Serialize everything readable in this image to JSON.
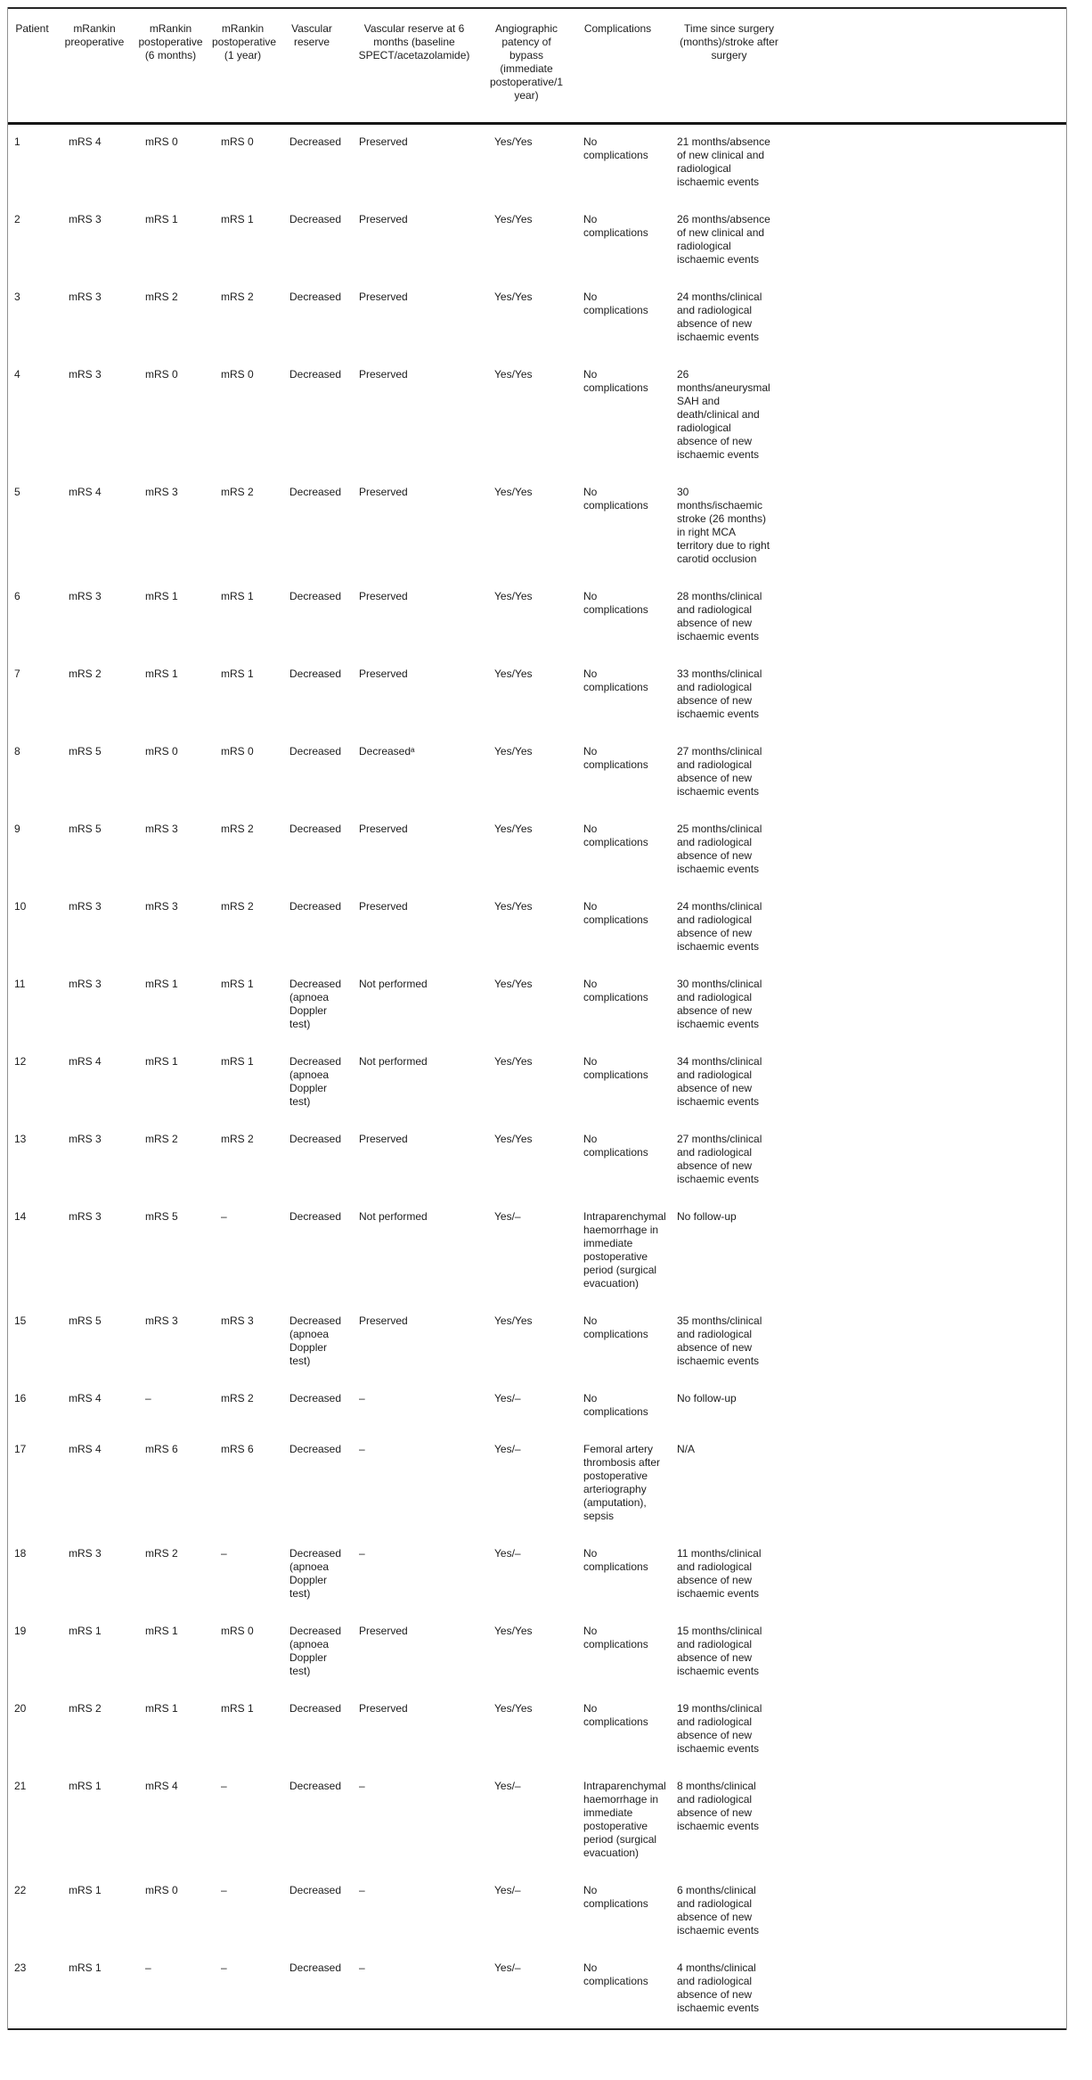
{
  "appearance": {
    "background": "#ffffff",
    "text_color": "#1c1c1c",
    "heavy_rule_color": "#161616",
    "frame_rule_color": "#919191"
  },
  "table": {
    "headers": [
      "Patient",
      "mRankin\npreoperative",
      "mRankin\npostoperative\n(6 months)",
      "mRankin\npostoperative\n(1 year)",
      "Vascular\nreserve",
      "Vascular reserve at 6\nmonths (baseline\nSPECT/acetazolamide)",
      "Angiographic\npatency of\nbypass\n(immediate\npostoperative/1\nyear)",
      "Complications",
      "Time since surgery\n(months)/stroke after\nsurgery"
    ],
    "rows": [
      [
        "1",
        "mRS 4",
        "mRS 0",
        "mRS 0",
        "Decreased",
        "Preserved",
        "Yes/Yes",
        "No\ncomplications",
        "21 months/absence\nof new clinical and\nradiological\nischaemic events"
      ],
      [
        "2",
        "mRS 3",
        "mRS 1",
        "mRS 1",
        "Decreased",
        "Preserved",
        "Yes/Yes",
        "No\ncomplications",
        "26 months/absence\nof new clinical and\nradiological\nischaemic events"
      ],
      [
        "3",
        "mRS 3",
        "mRS 2",
        "mRS 2",
        "Decreased",
        "Preserved",
        "Yes/Yes",
        "No\ncomplications",
        "24 months/clinical\nand radiological\nabsence of new\nischaemic events"
      ],
      [
        "4",
        "mRS 3",
        "mRS 0",
        "mRS 0",
        "Decreased",
        "Preserved",
        "Yes/Yes",
        "No\ncomplications",
        "26\nmonths/aneurysmal\nSAH and\ndeath/clinical and\nradiological\nabsence of new\nischaemic events"
      ],
      [
        "5",
        "mRS 4",
        "mRS 3",
        "mRS 2",
        "Decreased",
        "Preserved",
        "Yes/Yes",
        "No\ncomplications",
        "30\nmonths/ischaemic\nstroke (26 months)\nin right MCA\nterritory due to right\ncarotid occlusion"
      ],
      [
        "6",
        "mRS 3",
        "mRS 1",
        "mRS 1",
        "Decreased",
        "Preserved",
        "Yes/Yes",
        "No\ncomplications",
        "28 months/clinical\nand radiological\nabsence of new\nischaemic events"
      ],
      [
        "7",
        "mRS 2",
        "mRS 1",
        "mRS 1",
        "Decreased",
        "Preserved",
        "Yes/Yes",
        "No\ncomplications",
        "33 months/clinical\nand radiological\nabsence of new\nischaemic events"
      ],
      [
        "8",
        "mRS 5",
        "mRS 0",
        "mRS 0",
        "Decreased",
        "Decreasedᵃ",
        "Yes/Yes",
        "No\ncomplications",
        "27 months/clinical\nand radiological\nabsence of new\nischaemic events"
      ],
      [
        "9",
        "mRS 5",
        "mRS 3",
        "mRS 2",
        "Decreased",
        "Preserved",
        "Yes/Yes",
        "No\ncomplications",
        "25 months/clinical\nand radiological\nabsence of new\nischaemic events"
      ],
      [
        "10",
        "mRS 3",
        "mRS 3",
        "mRS 2",
        "Decreased",
        "Preserved",
        "Yes/Yes",
        "No\ncomplications",
        "24 months/clinical\nand radiological\nabsence of new\nischaemic events"
      ],
      [
        "11",
        "mRS 3",
        "mRS 1",
        "mRS 1",
        "Decreased\n(apnoea\nDoppler\ntest)",
        "Not performed",
        "Yes/Yes",
        "No\ncomplications",
        "30 months/clinical\nand radiological\nabsence of new\nischaemic events"
      ],
      [
        "12",
        "mRS 4",
        "mRS 1",
        "mRS 1",
        "Decreased\n(apnoea\nDoppler\ntest)",
        "Not performed",
        "Yes/Yes",
        "No\ncomplications",
        "34 months/clinical\nand radiological\nabsence of new\nischaemic events"
      ],
      [
        "13",
        "mRS 3",
        "mRS 2",
        "mRS 2",
        "Decreased",
        "Preserved",
        "Yes/Yes",
        "No\ncomplications",
        "27 months/clinical\nand radiological\nabsence of new\nischaemic events"
      ],
      [
        "14",
        "mRS 3",
        "mRS 5",
        "–",
        "Decreased",
        "Not performed",
        "Yes/–",
        "Intraparenchymal\nhaemorrhage in\nimmediate\npostoperative\nperiod (surgical\nevacuation)",
        "No follow-up"
      ],
      [
        "15",
        "mRS 5",
        "mRS 3",
        "mRS 3",
        "Decreased\n(apnoea\nDoppler\ntest)",
        "Preserved",
        "Yes/Yes",
        "No\ncomplications",
        "35 months/clinical\nand radiological\nabsence of new\nischaemic events"
      ],
      [
        "16",
        "mRS 4",
        "–",
        "mRS 2",
        "Decreased",
        "–",
        "Yes/–",
        "No\ncomplications",
        "No follow-up"
      ],
      [
        "17",
        "mRS 4",
        "mRS 6",
        "mRS 6",
        "Decreased",
        "–",
        "Yes/–",
        "Femoral artery\nthrombosis after\npostoperative\narteriography\n(amputation),\nsepsis",
        "N/A"
      ],
      [
        "18",
        "mRS 3",
        "mRS 2",
        "–",
        "Decreased\n(apnoea\nDoppler\ntest)",
        "–",
        "Yes/–",
        "No\ncomplications",
        "11 months/clinical\nand radiological\nabsence of new\nischaemic events"
      ],
      [
        "19",
        "mRS 1",
        "mRS 1",
        "mRS 0",
        "Decreased\n(apnoea\nDoppler\ntest)",
        "Preserved",
        "Yes/Yes",
        "No\ncomplications",
        "15 months/clinical\nand radiological\nabsence of new\nischaemic events"
      ],
      [
        "20",
        "mRS 2",
        "mRS 1",
        "mRS 1",
        "Decreased",
        "Preserved",
        "Yes/Yes",
        "No\ncomplications",
        "19 months/clinical\nand radiological\nabsence of new\nischaemic events"
      ],
      [
        "21",
        "mRS 1",
        "mRS 4",
        "–",
        "Decreased",
        "–",
        "Yes/–",
        "Intraparenchymal\nhaemorrhage in\nimmediate\npostoperative\nperiod (surgical\nevacuation)",
        "8 months/clinical\nand radiological\nabsence of new\nischaemic events"
      ],
      [
        "22",
        "mRS 1",
        "mRS 0",
        "–",
        "Decreased",
        "–",
        "Yes/–",
        "No\ncomplications",
        "6 months/clinical\nand radiological\nabsence of new\nischaemic events"
      ],
      [
        "23",
        "mRS 1",
        "–",
        "–",
        "Decreased",
        "–",
        "Yes/–",
        "No\ncomplications",
        "4 months/clinical\nand radiological\nabsence of new\nischaemic events"
      ]
    ]
  }
}
